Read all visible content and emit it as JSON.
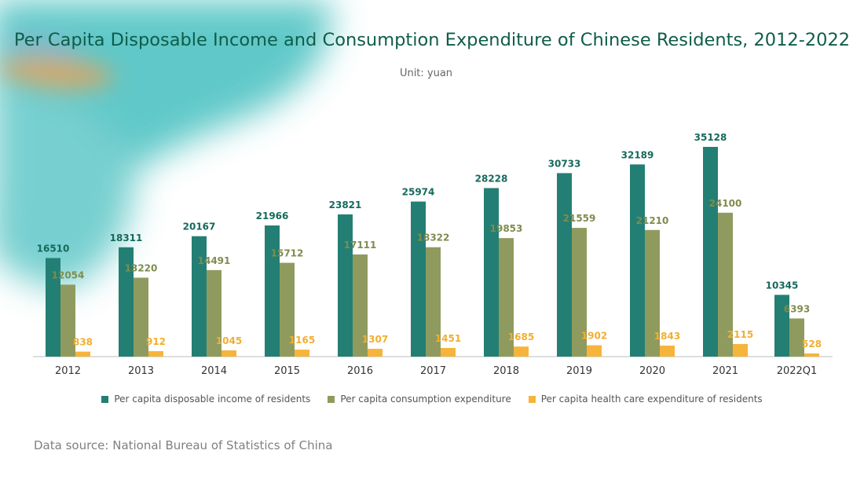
{
  "page": {
    "title": "Per Capita Disposable Income and Consumption Expenditure of Chinese Residents, 2012-2022",
    "subtitle": "Unit: yuan",
    "source": "Data source: National Bureau of Statistics of China"
  },
  "colors": {
    "income": "#237f73",
    "consumption": "#8f9b5e",
    "health": "#f6b43b",
    "title": "#0f5d49",
    "axis": "#bdbdbd"
  },
  "chart_data": {
    "type": "bar",
    "title": "Per Capita Disposable Income and Consumption Expenditure of Chinese Residents, 2012-2022",
    "subtitle": "Unit: yuan",
    "categories": [
      "2012",
      "2013",
      "2014",
      "2015",
      "2016",
      "2017",
      "2018",
      "2019",
      "2020",
      "2021",
      "2022Q1"
    ],
    "series": [
      {
        "name": "Per capita disposable income of residents",
        "color": "#237f73",
        "values": [
          16510,
          18311,
          20167,
          21966,
          23821,
          25974,
          28228,
          30733,
          32189,
          35128,
          10345
        ]
      },
      {
        "name": "Per capita consumption expenditure",
        "color": "#8f9b5e",
        "values": [
          12054,
          13220,
          14491,
          15712,
          17111,
          18322,
          19853,
          21559,
          21210,
          24100,
          6393
        ]
      },
      {
        "name": "Per capita health care expenditure of residents",
        "color": "#f6b43b",
        "values": [
          838,
          912,
          1045,
          1165,
          1307,
          1451,
          1685,
          1902,
          1843,
          2115,
          528
        ]
      }
    ],
    "xlabel": "",
    "ylabel": "",
    "ylim": [
      0,
      35128
    ],
    "grid": false,
    "legend": "bottom"
  }
}
